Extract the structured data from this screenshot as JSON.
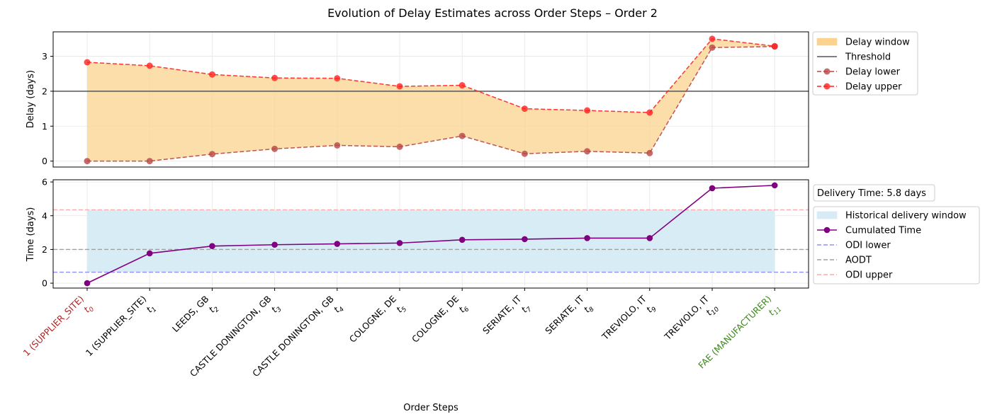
{
  "chart_data": {
    "title": "Evolution of Delay Estimates across Order Steps – Order 2",
    "xlabel": "Order Steps",
    "categories": [
      {
        "label": "1 (SUPPLIER_SITE)",
        "step": "0",
        "color": "#b22222"
      },
      {
        "label": "1 (SUPPLIER_SITE)",
        "step": "1",
        "color": "#000000"
      },
      {
        "label": "LEEDS, GB",
        "step": "2",
        "color": "#000000"
      },
      {
        "label": "CASTLE DONINGTON, GB",
        "step": "3",
        "color": "#000000"
      },
      {
        "label": "CASTLE DONINGTON, GB",
        "step": "4",
        "color": "#000000"
      },
      {
        "label": "COLOGNE, DE",
        "step": "5",
        "color": "#000000"
      },
      {
        "label": "COLOGNE, DE",
        "step": "6",
        "color": "#000000"
      },
      {
        "label": "SERIATE, IT",
        "step": "7",
        "color": "#000000"
      },
      {
        "label": "SERIATE, IT",
        "step": "8",
        "color": "#000000"
      },
      {
        "label": "TREVIOLO, IT",
        "step": "9",
        "color": "#000000"
      },
      {
        "label": "TREVIOLO, IT",
        "step": "10",
        "color": "#000000"
      },
      {
        "label": "FAE (MANUFACTURER)",
        "step": "11",
        "color": "#3a8a1a"
      }
    ],
    "tick_prefix": "t",
    "panels": [
      {
        "type": "line",
        "ylabel": "Delay (days)",
        "ylim": [
          -0.17,
          3.7
        ],
        "yticks": [
          0,
          1,
          2,
          3
        ],
        "grid": true,
        "legend_position": "outside-top-right",
        "threshold": {
          "name": "Threshold",
          "value": 2.0,
          "color": "#555555"
        },
        "band": {
          "name": "Delay window",
          "color": "#fbd38d"
        },
        "series": [
          {
            "name": "Delay lower",
            "color": "#b84545",
            "values": [
              0.0,
              0.0,
              0.2,
              0.35,
              0.45,
              0.41,
              0.72,
              0.21,
              0.28,
              0.23,
              3.25,
              3.28
            ]
          },
          {
            "name": "Delay upper",
            "color": "#ff2020",
            "values": [
              2.83,
              2.73,
              2.48,
              2.38,
              2.37,
              2.14,
              2.17,
              1.5,
              1.45,
              1.39,
              3.5,
              3.29
            ]
          }
        ]
      },
      {
        "type": "line",
        "ylabel": "Time (days)",
        "ylim": [
          -0.29,
          6.13
        ],
        "yticks": [
          0,
          2,
          4,
          6
        ],
        "grid": true,
        "legend_position": "outside-right",
        "annotation": "Delivery Time: 5.8 days",
        "band": {
          "name": "Historical delivery window",
          "from": 0.65,
          "to": 4.35,
          "color": "#d6ebf6"
        },
        "series": [
          {
            "name": "Cumulated Time",
            "color": "#800080",
            "values": [
              0.0,
              1.77,
              2.2,
              2.28,
              2.33,
              2.38,
              2.57,
              2.61,
              2.67,
              2.67,
              5.63,
              5.8
            ]
          }
        ],
        "reference_lines": [
          {
            "name": "ODI lower",
            "value": 0.65,
            "color": "#8f8fff"
          },
          {
            "name": "AODT",
            "value": 2.0,
            "color": "#a0a0a0"
          },
          {
            "name": "ODI upper",
            "value": 4.35,
            "color": "#ffaaaa"
          }
        ]
      }
    ]
  }
}
